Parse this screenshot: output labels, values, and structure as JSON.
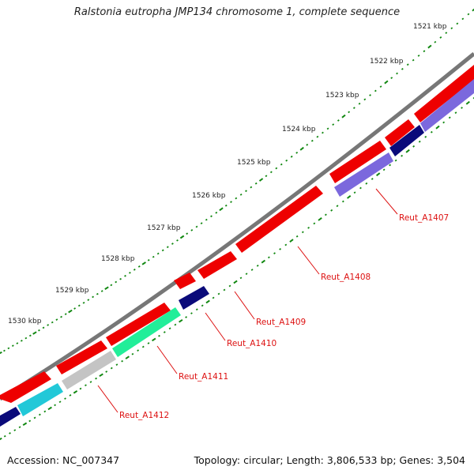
{
  "title": "Ralstonia eutropha JMP134 chromosome 1, complete sequence",
  "footer": {
    "accession": "Accession: NC_007347",
    "summary": "Topology: circular; Length: 3,806,533 bp; Genes: 3,504"
  },
  "scale_labels": [
    "1521 kbp",
    "1522 kbp",
    "1523 kbp",
    "1524 kbp",
    "1525 kbp",
    "1526 kbp",
    "1527 kbp",
    "1528 kbp",
    "1529 kbp",
    "1530 kbp"
  ],
  "gene_labels": [
    "Reut_A1407",
    "Reut_A1408",
    "Reut_A1409",
    "Reut_A1410",
    "Reut_A1411",
    "Reut_A1412"
  ],
  "colors": {
    "backbone": "#777777",
    "forward_cds": "#ee0000",
    "navy_cds": "#0a0a7a",
    "purple_cds": "#7b68dd",
    "mint_cds": "#22ee99",
    "grey_cds": "#c4c4c4",
    "cyan_cds": "#22c8d8",
    "tick": "#118811",
    "label": "#dd1111"
  }
}
